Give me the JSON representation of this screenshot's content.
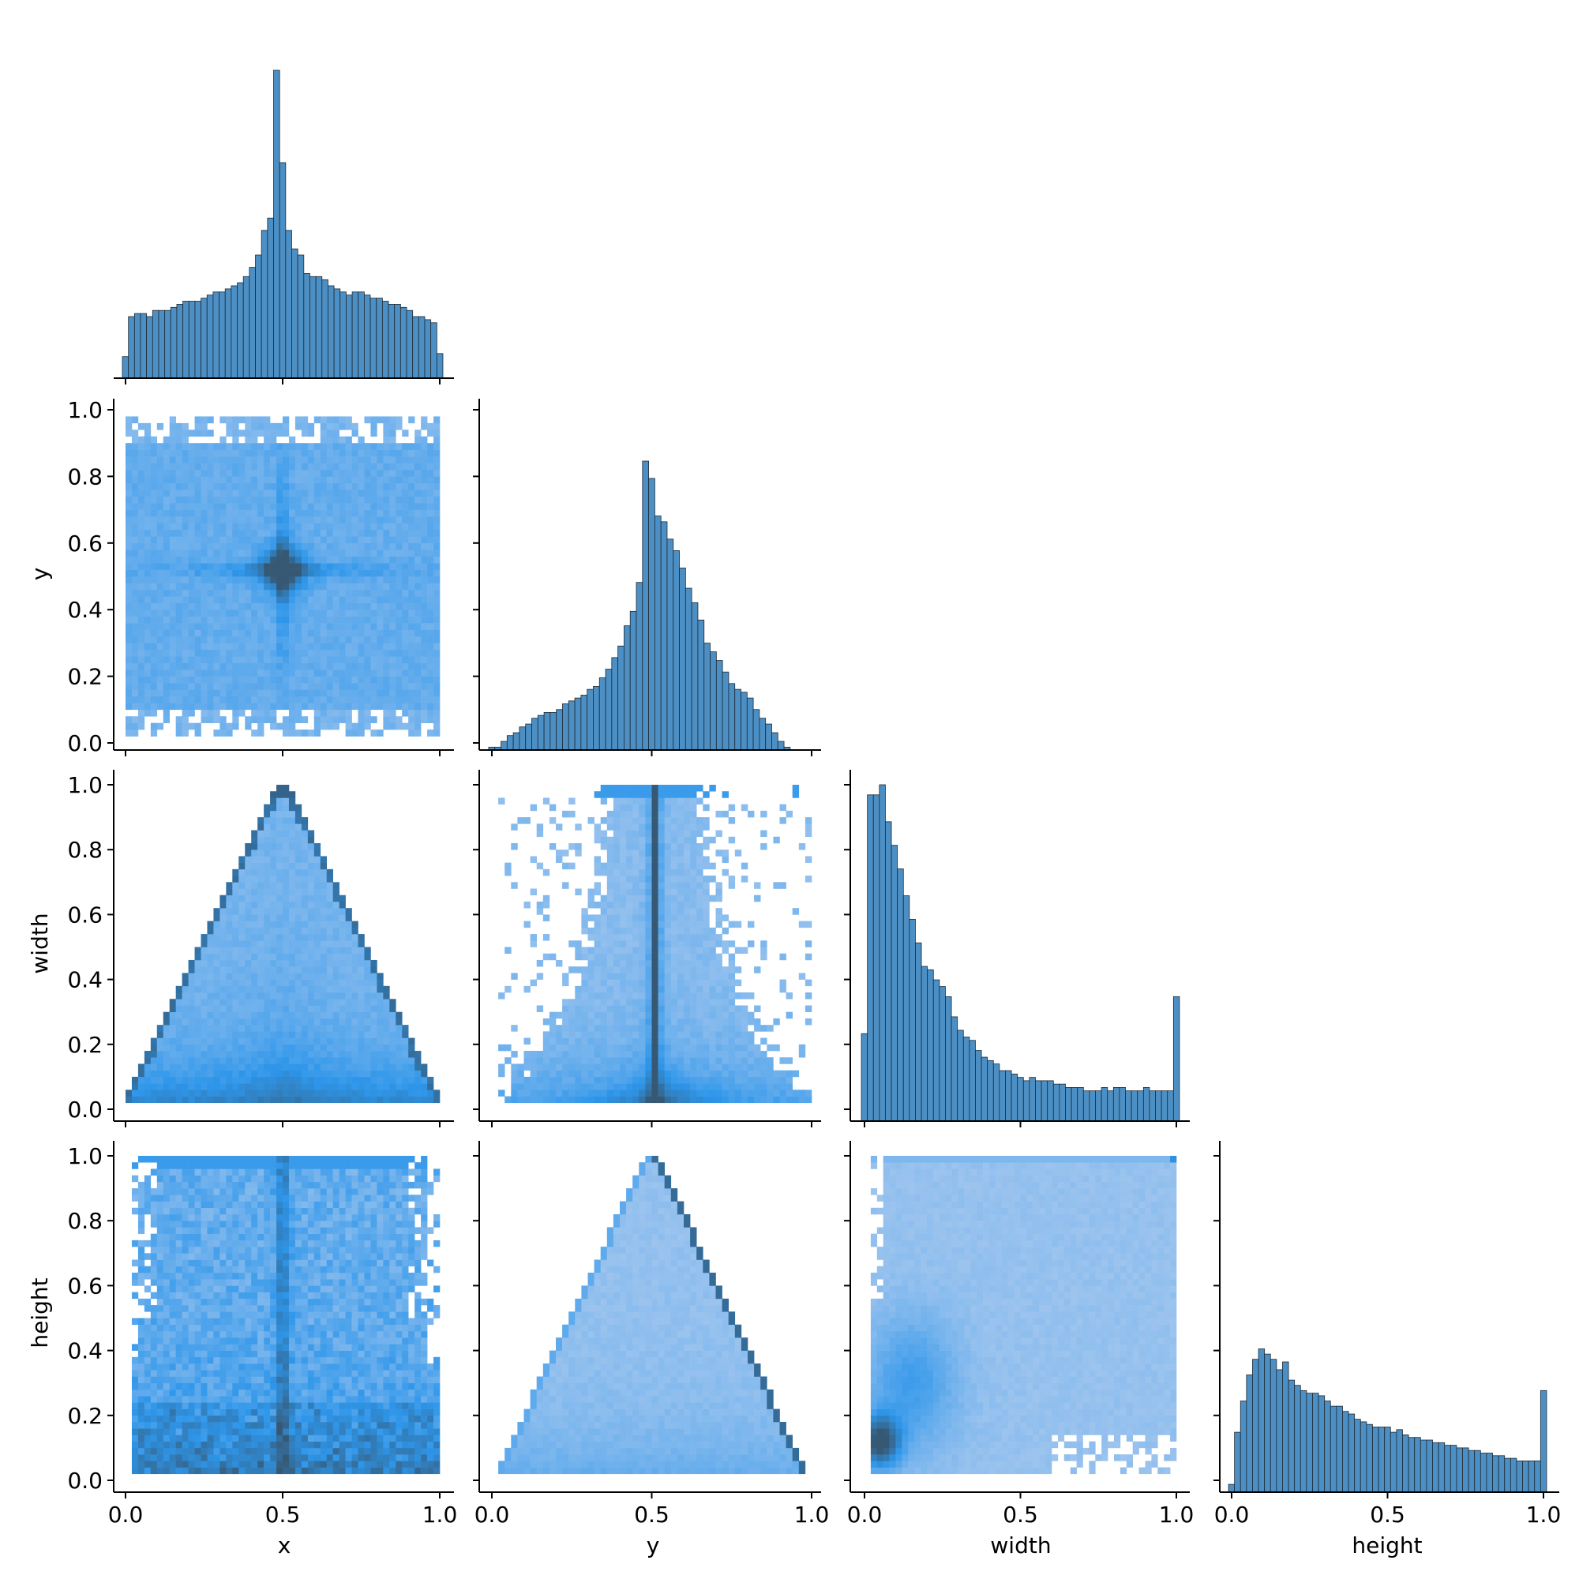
{
  "colors": {
    "bar_fill": "#4c8fc4",
    "bar_edge": "#1f2a33",
    "hist2d_light": "#a9c9ef",
    "hist2d_mid": "#2e96ea",
    "hist2d_dark": "#365873",
    "axis": "#000000"
  },
  "chart_data": {
    "type": "pairplot",
    "variables": [
      "x",
      "y",
      "width",
      "height"
    ],
    "layout": "corner",
    "xlabels": [
      "x",
      "y",
      "width",
      "height"
    ],
    "ylabels": [
      "",
      "y",
      "width",
      "height"
    ],
    "axis_range": [
      0.0,
      1.0
    ],
    "ticks": [
      "0.0",
      "0.2",
      "0.4",
      "0.6",
      "0.8",
      "1.0"
    ],
    "bottom_ticks": [
      "0.0",
      "0.5",
      "1.0"
    ],
    "diagonal_type": "histogram",
    "offdiagonal_type": "heatmap",
    "diagonal_histograms": {
      "x": [
        0.07,
        0.2,
        0.21,
        0.21,
        0.2,
        0.22,
        0.22,
        0.22,
        0.23,
        0.24,
        0.25,
        0.25,
        0.25,
        0.26,
        0.27,
        0.28,
        0.28,
        0.29,
        0.3,
        0.31,
        0.33,
        0.36,
        0.4,
        0.48,
        0.52,
        1.0,
        0.7,
        0.48,
        0.42,
        0.4,
        0.34,
        0.33,
        0.33,
        0.32,
        0.3,
        0.29,
        0.28,
        0.27,
        0.28,
        0.28,
        0.27,
        0.26,
        0.26,
        0.25,
        0.24,
        0.24,
        0.23,
        0.22,
        0.2,
        0.2,
        0.19,
        0.18,
        0.08
      ],
      "y": [
        0.01,
        0.01,
        0.03,
        0.05,
        0.06,
        0.08,
        0.09,
        0.11,
        0.12,
        0.13,
        0.13,
        0.14,
        0.16,
        0.17,
        0.18,
        0.19,
        0.21,
        0.22,
        0.25,
        0.28,
        0.32,
        0.36,
        0.43,
        0.48,
        0.58,
        1.0,
        0.94,
        0.81,
        0.79,
        0.73,
        0.69,
        0.63,
        0.56,
        0.51,
        0.45,
        0.37,
        0.34,
        0.31,
        0.27,
        0.23,
        0.21,
        0.2,
        0.18,
        0.14,
        0.11,
        0.09,
        0.06,
        0.03,
        0.01,
        0.0,
        0.0,
        0.0,
        0.0
      ],
      "width": [
        0.26,
        0.97,
        0.97,
        1.0,
        0.89,
        0.82,
        0.75,
        0.67,
        0.6,
        0.53,
        0.46,
        0.45,
        0.42,
        0.4,
        0.37,
        0.31,
        0.27,
        0.25,
        0.24,
        0.21,
        0.19,
        0.18,
        0.17,
        0.15,
        0.15,
        0.14,
        0.13,
        0.12,
        0.13,
        0.12,
        0.12,
        0.12,
        0.11,
        0.11,
        0.1,
        0.1,
        0.1,
        0.09,
        0.09,
        0.09,
        0.1,
        0.09,
        0.1,
        0.1,
        0.09,
        0.09,
        0.09,
        0.1,
        0.09,
        0.09,
        0.09,
        0.09,
        0.37
      ],
      "height": [
        0.03,
        0.23,
        0.35,
        0.45,
        0.51,
        0.55,
        0.53,
        0.51,
        0.47,
        0.5,
        0.43,
        0.41,
        0.39,
        0.38,
        0.38,
        0.37,
        0.35,
        0.33,
        0.33,
        0.31,
        0.3,
        0.28,
        0.27,
        0.26,
        0.25,
        0.25,
        0.25,
        0.23,
        0.24,
        0.22,
        0.21,
        0.21,
        0.2,
        0.2,
        0.19,
        0.19,
        0.18,
        0.18,
        0.17,
        0.17,
        0.16,
        0.16,
        0.15,
        0.15,
        0.14,
        0.14,
        0.13,
        0.13,
        0.12,
        0.12,
        0.12,
        0.12,
        0.39
      ]
    },
    "heatmaps": [
      {
        "x_var": "x",
        "y_var": "y",
        "pattern": "cross centered at (0.5, 0.52); broad fill x 0.01–0.99, y 0.03–0.97"
      },
      {
        "x_var": "x",
        "y_var": "width",
        "pattern": "triangle with apex at (0.5, 1.0), base 0.0–1.0 at width≈0.03; dark edges and dark base"
      },
      {
        "x_var": "y",
        "y_var": "width",
        "pattern": "dark vertical band at y≈0.51; dark dense region at width 0.05–0.15; top row at width 1.0"
      },
      {
        "x_var": "x",
        "y_var": "height",
        "pattern": "dark vertical band at x≈0.5; dense at height 0.05–0.3; top row at height 1.0"
      },
      {
        "x_var": "y",
        "y_var": "height",
        "pattern": "triangle with apex at (0.5, 1.0), base 0.03–0.98 at height≈0.03; dark right edge"
      },
      {
        "x_var": "width",
        "y_var": "height",
        "pattern": "dense dark blob at low width / low height (≈0.05, 0.1); light fill over the square; sparse lower-right"
      }
    ]
  }
}
